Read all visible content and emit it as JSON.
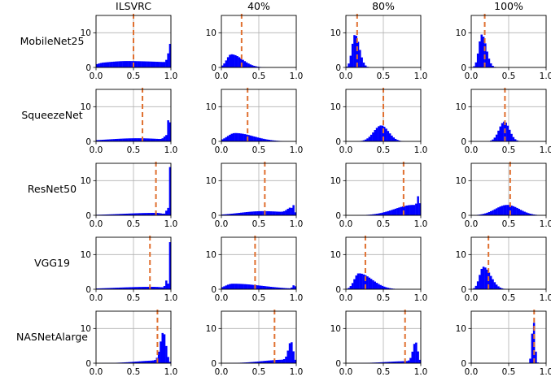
{
  "chart_data": {
    "type": "histogram-grid",
    "columns": [
      "ILSVRC",
      "40%",
      "80%",
      "100%"
    ],
    "rows": [
      "MobileNet25",
      "SqueezeNet",
      "ResNet50",
      "VGG19",
      "NASNetAlarge"
    ],
    "xlim": [
      0,
      1
    ],
    "ylim": [
      0,
      15
    ],
    "xticks": [
      "0.0",
      "0.5",
      "1.0"
    ],
    "yticks": [
      "0",
      "10"
    ],
    "grid": true,
    "bar_color": "#0000ff",
    "mean_line_color": "#e07030",
    "panels": [
      [
        {
          "dist": [
            [
              0.1,
              0.9,
              0.1,
              1.0
            ],
            [
              0.45,
              1.0,
              0.3,
              1.0
            ],
            [
              0.97,
              2.5,
              0.02,
              0.05
            ],
            [
              0.985,
              3.0,
              0.01,
              0.02
            ]
          ],
          "mean": 0.5
        },
        {
          "dist": [
            [
              0.13,
              3.8,
              0.06,
              0.15
            ]
          ],
          "mean": 0.27
        },
        {
          "dist": [
            [
              0.12,
              9.5,
              0.04,
              0.06
            ]
          ],
          "mean": 0.15
        },
        {
          "dist": [
            [
              0.14,
              9.5,
              0.04,
              0.06
            ]
          ],
          "mean": 0.18
        }
      ],
      [
        {
          "dist": [
            [
              0.55,
              0.9,
              0.4,
              0.4
            ],
            [
              0.975,
              8.0,
              0.012,
              0.012
            ],
            [
              0.94,
              1.2,
              0.03,
              0.03
            ]
          ],
          "mean": 0.62
        },
        {
          "dist": [
            [
              0.18,
              2.4,
              0.1,
              0.25
            ]
          ],
          "mean": 0.35
        },
        {
          "dist": [
            [
              0.47,
              4.6,
              0.1,
              0.1
            ]
          ],
          "mean": 0.5
        },
        {
          "dist": [
            [
              0.44,
              5.7,
              0.07,
              0.07
            ]
          ],
          "mean": 0.45
        }
      ],
      [
        {
          "dist": [
            [
              0.8,
              0.7,
              0.45,
              0.1
            ],
            [
              0.985,
              15.0,
              0.006,
              0.006
            ],
            [
              0.96,
              2.0,
              0.02,
              0.01
            ]
          ],
          "mean": 0.8
        },
        {
          "dist": [
            [
              0.55,
              1.2,
              0.3,
              0.4
            ],
            [
              0.975,
              4.0,
              0.01,
              0.005
            ],
            [
              0.93,
              1.5,
              0.05,
              0.02
            ]
          ],
          "mean": 0.58
        },
        {
          "dist": [
            [
              0.9,
              3.0,
              0.25,
              0.08
            ],
            [
              0.975,
              4.0,
              0.02,
              0.01
            ]
          ],
          "mean": 0.77
        },
        {
          "dist": [
            [
              0.48,
              3.0,
              0.16,
              0.16
            ]
          ],
          "mean": 0.52
        }
      ],
      [
        {
          "dist": [
            [
              0.75,
              0.7,
              0.5,
              0.2
            ],
            [
              0.985,
              15.0,
              0.007,
              0.005
            ],
            [
              0.95,
              2.5,
              0.02,
              0.01
            ]
          ],
          "mean": 0.72
        },
        {
          "dist": [
            [
              0.15,
              1.6,
              0.1,
              0.4
            ],
            [
              0.97,
              1.0,
              0.02,
              0.02
            ]
          ],
          "mean": 0.45
        },
        {
          "dist": [
            [
              0.17,
              4.6,
              0.06,
              0.18
            ]
          ],
          "mean": 0.26
        },
        {
          "dist": [
            [
              0.16,
              6.5,
              0.05,
              0.1
            ]
          ],
          "mean": 0.23
        }
      ],
      [
        {
          "dist": [
            [
              0.9,
              8.5,
              0.04,
              0.035
            ],
            [
              0.85,
              0.8,
              0.3,
              0.05
            ]
          ],
          "mean": 0.82
        },
        {
          "dist": [
            [
              0.93,
              6.0,
              0.035,
              0.03
            ],
            [
              0.85,
              1.0,
              0.3,
              0.05
            ]
          ],
          "mean": 0.71
        },
        {
          "dist": [
            [
              0.93,
              6.0,
              0.035,
              0.03
            ],
            [
              0.85,
              0.6,
              0.3,
              0.05
            ]
          ],
          "mean": 0.79
        },
        {
          "dist": [
            [
              0.83,
              12.5,
              0.02,
              0.02
            ]
          ],
          "mean": 0.84
        }
      ]
    ]
  }
}
